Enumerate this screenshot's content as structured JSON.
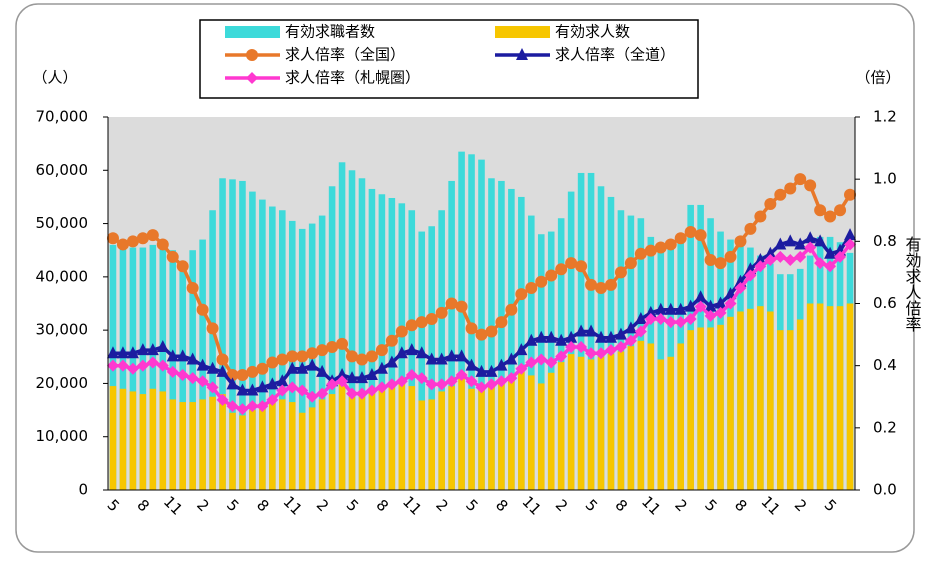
{
  "chart_data": {
    "type": "bar-line",
    "y_label": "（人）",
    "y2_label": "（倍）",
    "y2_title": "有効求人倍率",
    "categories": [
      "5",
      null,
      null,
      "8",
      null,
      null,
      "11",
      null,
      null,
      "2",
      null,
      null,
      "5",
      null,
      null,
      "8",
      null,
      null,
      "11",
      null,
      null,
      "2",
      null,
      null,
      "5",
      null,
      null,
      "8",
      null,
      null,
      "11",
      null,
      null,
      "2",
      null,
      null,
      "5",
      null,
      null,
      "8",
      null,
      null,
      "11",
      null,
      null,
      "2",
      null,
      null,
      "5",
      null,
      null,
      "8",
      null,
      null,
      "11",
      null,
      null,
      "2",
      null,
      null,
      "5",
      null,
      null,
      "8",
      null,
      null,
      "11",
      null,
      null,
      "2",
      null,
      null,
      "5",
      null,
      null
    ],
    "ylim": [
      0,
      70000
    ],
    "yticks": [
      0,
      {
        "value": 10000,
        "label": "10,000"
      },
      {
        "value": 20000,
        "label": "20,000"
      },
      {
        "value": 30000,
        "label": "30,000"
      },
      {
        "value": 40000,
        "label": "40,000"
      },
      {
        "value": 50000,
        "label": "50,000"
      },
      {
        "value": 60000,
        "label": "60,000"
      },
      {
        "value": 70000,
        "label": "70,000"
      }
    ],
    "y2lim": [
      0,
      1.2
    ],
    "y2ticks": [
      {
        "value": 0,
        "label": "0.0"
      },
      0.2,
      0.4,
      0.6,
      0.8,
      {
        "value": 1,
        "label": "1.0"
      },
      1.2
    ],
    "plot_background": "#dcdcdc",
    "series": [
      {
        "name": "有効求職者数",
        "mark": "bar",
        "color": "#3ddada",
        "values": [
          46000,
          46500,
          45500,
          45500,
          46000,
          46500,
          45000,
          43000,
          45000,
          47000,
          52500,
          58500,
          58300,
          58000,
          56000,
          54500,
          53200,
          52500,
          50500,
          49000,
          50000,
          51500,
          57000,
          61500,
          60000,
          58500,
          56500,
          55500,
          54800,
          53800,
          52500,
          48500,
          49500,
          52500,
          58000,
          63500,
          63000,
          62000,
          58500,
          58000,
          56500,
          55000,
          51500,
          48000,
          48500,
          51000,
          56000,
          59500,
          59500,
          57000,
          55000,
          52500,
          51500,
          51000,
          47500,
          46000,
          45500,
          47500,
          53500,
          53500,
          51000,
          48500,
          47000,
          46500,
          45500,
          44000,
          42500,
          40500,
          40500,
          41500,
          44000,
          47500,
          47500,
          46500,
          44500
        ]
      },
      {
        "name": "有効求人数",
        "mark": "bar",
        "color": "#f7c600",
        "values": [
          19500,
          19000,
          18500,
          18000,
          19000,
          18500,
          17000,
          16500,
          16500,
          17000,
          17500,
          18000,
          14500,
          14000,
          15000,
          15500,
          16500,
          17000,
          16500,
          14500,
          15500,
          17000,
          18000,
          21000,
          17500,
          18000,
          18500,
          19000,
          19500,
          20000,
          19500,
          16800,
          17000,
          18500,
          19500,
          21000,
          19000,
          19000,
          19500,
          20500,
          21500,
          22500,
          21500,
          20000,
          22000,
          24000,
          25500,
          25000,
          24500,
          25000,
          25500,
          26000,
          27000,
          28000,
          27500,
          24500,
          25000,
          27500,
          30000,
          30500,
          30500,
          31000,
          32500,
          33500,
          34000,
          34500,
          33500,
          30000,
          30000,
          32000,
          35000,
          35000,
          34500,
          34500,
          35000
        ]
      },
      {
        "name": "求人倍率（全国）",
        "mark": "line",
        "axis": "y2",
        "marker": "circle",
        "color": "#e8782a",
        "values": [
          0.81,
          0.79,
          0.8,
          0.81,
          0.82,
          0.79,
          0.75,
          0.72,
          0.65,
          0.58,
          0.52,
          0.42,
          0.37,
          0.37,
          0.38,
          0.39,
          0.41,
          0.42,
          0.43,
          0.43,
          0.44,
          0.45,
          0.46,
          0.47,
          0.43,
          0.42,
          0.43,
          0.45,
          0.48,
          0.51,
          0.53,
          0.54,
          0.55,
          0.57,
          0.6,
          0.59,
          0.52,
          0.5,
          0.51,
          0.54,
          0.58,
          0.63,
          0.65,
          0.67,
          0.69,
          0.71,
          0.73,
          0.72,
          0.66,
          0.65,
          0.66,
          0.7,
          0.73,
          0.76,
          0.77,
          0.78,
          0.79,
          0.81,
          0.83,
          0.82,
          0.74,
          0.73,
          0.75,
          0.8,
          0.84,
          0.88,
          0.92,
          0.95,
          0.97,
          1.0,
          0.98,
          0.9,
          0.88,
          0.9,
          0.95
        ]
      },
      {
        "name": "求人倍率（全道）",
        "mark": "line",
        "axis": "y2",
        "marker": "triangle",
        "color": "#1c1ca0",
        "values": [
          0.44,
          0.44,
          0.44,
          0.45,
          0.45,
          0.46,
          0.43,
          0.43,
          0.42,
          0.4,
          0.39,
          0.38,
          0.34,
          0.32,
          0.32,
          0.33,
          0.34,
          0.35,
          0.39,
          0.39,
          0.4,
          0.38,
          0.35,
          0.37,
          0.36,
          0.36,
          0.37,
          0.39,
          0.41,
          0.44,
          0.45,
          0.44,
          0.42,
          0.42,
          0.43,
          0.43,
          0.4,
          0.38,
          0.38,
          0.4,
          0.42,
          0.45,
          0.48,
          0.49,
          0.49,
          0.48,
          0.49,
          0.51,
          0.51,
          0.49,
          0.49,
          0.5,
          0.52,
          0.55,
          0.57,
          0.58,
          0.58,
          0.58,
          0.59,
          0.62,
          0.59,
          0.6,
          0.63,
          0.67,
          0.71,
          0.74,
          0.76,
          0.79,
          0.8,
          0.79,
          0.81,
          0.8,
          0.76,
          0.77,
          0.82
        ]
      },
      {
        "name": "求人倍率（札幌圏）",
        "mark": "line",
        "axis": "y2",
        "marker": "diamond",
        "color": "#ff38d0",
        "values": [
          0.4,
          0.4,
          0.39,
          0.4,
          0.41,
          0.4,
          0.38,
          0.37,
          0.36,
          0.35,
          0.33,
          0.29,
          0.27,
          0.26,
          0.27,
          0.27,
          0.29,
          0.32,
          0.33,
          0.32,
          0.3,
          0.31,
          0.34,
          0.35,
          0.31,
          0.31,
          0.32,
          0.33,
          0.34,
          0.35,
          0.37,
          0.36,
          0.34,
          0.34,
          0.35,
          0.37,
          0.35,
          0.33,
          0.34,
          0.35,
          0.36,
          0.39,
          0.41,
          0.42,
          0.41,
          0.43,
          0.46,
          0.46,
          0.44,
          0.44,
          0.45,
          0.46,
          0.48,
          0.51,
          0.55,
          0.55,
          0.54,
          0.54,
          0.55,
          0.59,
          0.56,
          0.57,
          0.6,
          0.65,
          0.69,
          0.72,
          0.74,
          0.75,
          0.74,
          0.75,
          0.78,
          0.73,
          0.72,
          0.75,
          0.79
        ]
      }
    ]
  }
}
